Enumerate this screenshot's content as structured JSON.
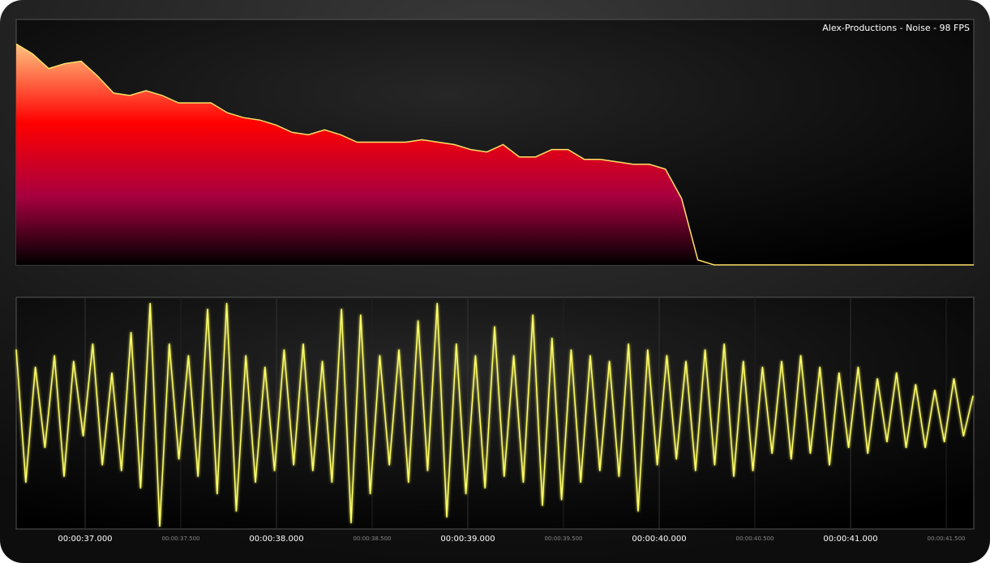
{
  "chart_data": [
    {
      "type": "area",
      "title": "Alex-Productions - Noise - 98 FPS",
      "values": [
        90,
        86,
        80,
        82,
        83,
        77,
        70,
        69,
        71,
        69,
        66,
        66,
        66,
        62,
        60,
        59,
        57,
        54,
        53,
        55,
        53,
        50,
        50,
        50,
        50,
        51,
        50,
        49,
        47,
        46,
        49,
        44,
        44,
        47,
        47,
        43,
        43,
        42,
        41,
        41,
        39,
        27,
        2,
        0,
        0,
        0,
        0,
        0,
        0,
        0,
        0,
        0,
        0,
        0,
        0,
        0,
        0,
        0,
        0,
        0
      ],
      "ylim": [
        0,
        100
      ],
      "color": "#ffe066",
      "fill_gradient": [
        "#ffffa8",
        "#ff0000",
        "#a8003f",
        "#000000"
      ]
    },
    {
      "type": "line",
      "x": [
        36.64,
        36.69,
        36.74,
        36.79,
        36.84,
        36.89,
        36.94,
        36.99,
        37.04,
        37.09,
        37.14,
        37.19,
        37.24,
        37.29,
        37.34,
        37.39,
        37.44,
        37.49,
        37.54,
        37.59,
        37.64,
        37.69,
        37.74,
        37.79,
        37.84,
        37.89,
        37.94,
        37.99,
        38.04,
        38.09,
        38.14,
        38.19,
        38.24,
        38.29,
        38.34,
        38.39,
        38.44,
        38.49,
        38.54,
        38.59,
        38.64,
        38.69,
        38.74,
        38.79,
        38.84,
        38.89,
        38.94,
        38.99,
        39.04,
        39.09,
        39.14,
        39.19,
        39.24,
        39.29,
        39.34,
        39.39,
        39.44,
        39.49,
        39.54,
        39.59,
        39.64,
        39.69,
        39.74,
        39.79,
        39.84,
        39.89,
        39.94,
        39.99,
        40.04,
        40.09,
        40.14,
        40.19,
        40.24,
        40.29,
        40.34,
        40.39,
        40.44,
        40.49,
        40.54,
        40.59,
        40.64,
        40.69,
        40.74,
        40.79,
        40.84,
        40.89,
        40.94,
        40.99,
        41.04,
        41.09,
        41.14,
        41.19,
        41.24,
        41.29,
        41.34,
        41.39,
        41.44,
        41.49,
        41.54,
        41.59,
        41.64
      ],
      "values": [
        0.55,
        -0.6,
        0.4,
        -0.3,
        0.5,
        -0.55,
        0.45,
        -0.2,
        0.6,
        -0.45,
        0.35,
        -0.5,
        0.7,
        -0.65,
        0.95,
        -0.98,
        0.6,
        -0.4,
        0.5,
        -0.55,
        0.9,
        -0.7,
        0.95,
        -0.85,
        0.5,
        -0.6,
        0.4,
        -0.5,
        0.55,
        -0.45,
        0.6,
        -0.5,
        0.45,
        -0.6,
        0.9,
        -0.95,
        0.85,
        -0.7,
        0.5,
        -0.45,
        0.55,
        -0.6,
        0.8,
        -0.5,
        0.95,
        -0.9,
        0.6,
        -0.7,
        0.5,
        -0.65,
        0.75,
        -0.55,
        0.5,
        -0.6,
        0.85,
        -0.8,
        0.65,
        -0.75,
        0.55,
        -0.6,
        0.5,
        -0.5,
        0.45,
        -0.55,
        0.6,
        -0.85,
        0.55,
        -0.45,
        0.5,
        -0.4,
        0.45,
        -0.5,
        0.55,
        -0.45,
        0.6,
        -0.55,
        0.45,
        -0.5,
        0.4,
        -0.35,
        0.45,
        -0.4,
        0.5,
        -0.35,
        0.4,
        -0.45,
        0.35,
        -0.3,
        0.4,
        -0.35,
        0.3,
        -0.25,
        0.35,
        -0.3,
        0.25,
        -0.3,
        0.2,
        -0.25,
        0.3,
        -0.2,
        0.15
      ],
      "xlim": [
        36.64,
        41.644
      ],
      "ylim": [
        -1,
        1
      ],
      "color": "#ffff66",
      "grid": true,
      "xticks": [
        {
          "value": 37,
          "label": "00:00:37.000"
        },
        {
          "value": 38,
          "label": "00:00:38.000"
        },
        {
          "value": 39,
          "label": "00:00:39.000"
        },
        {
          "value": 40,
          "label": "00:00:40.000"
        },
        {
          "value": 41,
          "label": "00:00:41.000"
        }
      ],
      "xminor_ticks": [
        {
          "value": 37.5,
          "label": "00:00:37.500"
        },
        {
          "value": 38.5,
          "label": "00:00:38.500"
        },
        {
          "value": 39.5,
          "label": "00:00:39.500"
        },
        {
          "value": 40.5,
          "label": "00:00:40.500"
        },
        {
          "value": 41.5,
          "label": "00:00:41.500"
        }
      ]
    }
  ]
}
